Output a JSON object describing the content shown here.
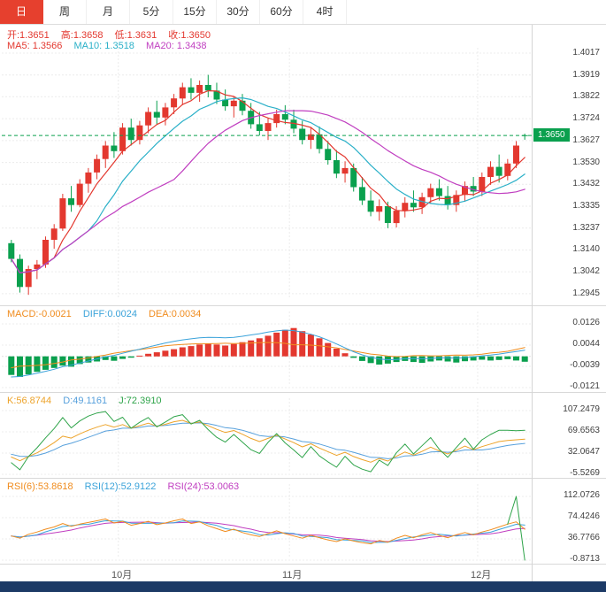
{
  "tabs": [
    {
      "label": "日",
      "active": true
    },
    {
      "label": "周",
      "active": false
    },
    {
      "label": "月",
      "active": false
    },
    {
      "label": "5分",
      "active": false
    },
    {
      "label": "15分",
      "active": false
    },
    {
      "label": "30分",
      "active": false
    },
    {
      "label": "60分",
      "active": false
    },
    {
      "label": "4时",
      "active": false
    }
  ],
  "main": {
    "ohlc": [
      "开:1.3651",
      "高:1.3658",
      "低:1.3631",
      "收:1.3650"
    ],
    "ma": [
      "MA5: 1.3566",
      "MA10: 1.3518",
      "MA20: 1.3438"
    ],
    "y_axis": [
      "1.4017",
      "1.3919",
      "1.3822",
      "1.3724",
      "1.3627",
      "1.3530",
      "1.3432",
      "1.3335",
      "1.3237",
      "1.3140",
      "1.3042",
      "1.2945"
    ]
  },
  "price_badge": "1.3650",
  "macd": {
    "readout": [
      "MACD:-0.0021",
      "DIFF:0.0024",
      "DEA:0.0034"
    ],
    "y_axis": [
      "0.0126",
      "0.0044",
      "-0.0039",
      "-0.0121"
    ]
  },
  "kdj": {
    "readout": [
      "K:56.8744",
      "D:49.1161",
      "J:72.3910"
    ],
    "y_axis": [
      "107.2479",
      "69.6563",
      "32.0647",
      "-5.5269"
    ]
  },
  "rsi": {
    "readout": [
      "RSI(6):53.8618",
      "RSI(12):52.9122",
      "RSI(24):53.0063"
    ],
    "y_axis": [
      "112.0726",
      "74.4246",
      "36.7766",
      "-0.8713"
    ]
  },
  "months": [
    "10月",
    "11月",
    "12月"
  ],
  "chart_data": {
    "type": "candlestick",
    "timeframe": "日",
    "last_price": 1.365,
    "main_ylim": [
      1.2945,
      1.4017
    ],
    "macd_ylim": [
      -0.0121,
      0.0126
    ],
    "kdj_ylim": [
      -5.5269,
      107.2479
    ],
    "rsi_ylim": [
      -0.8713,
      112.0726
    ],
    "month_index": [
      13,
      33,
      55
    ],
    "ma_periods": [
      5,
      10,
      20
    ],
    "ma_values": [
      1.3566,
      1.3518,
      1.3438
    ],
    "colors": {
      "up": "#e3382f",
      "down": "#0aa04e",
      "ma5": "#e3382f",
      "ma10": "#2ab0c8",
      "ma20": "#c03ec0",
      "diff": "#3ba3da",
      "dea": "#f08c1e",
      "k": "#eda32a",
      "d": "#57a0dc",
      "j": "#2fa44a",
      "rsi6": "#f08c1e",
      "rsi12": "#3ba3da",
      "rsi24": "#c03ec0",
      "price_badge": "#0aa04e",
      "active_tab": "#e6402e",
      "bottom_bar": "#1c3a66"
    },
    "candles": [
      [
        1.317,
        1.3185,
        1.3085,
        1.31
      ],
      [
        1.31,
        1.312,
        1.295,
        1.2975
      ],
      [
        1.2975,
        1.307,
        1.294,
        1.3055
      ],
      [
        1.3055,
        1.3095,
        1.301,
        1.3075
      ],
      [
        1.3075,
        1.32,
        1.306,
        1.3185
      ],
      [
        1.3185,
        1.3255,
        1.3145,
        1.3235
      ],
      [
        1.3235,
        1.339,
        1.3225,
        1.337
      ],
      [
        1.337,
        1.3425,
        1.331,
        1.334
      ],
      [
        1.334,
        1.3455,
        1.333,
        1.3435
      ],
      [
        1.3435,
        1.3505,
        1.3395,
        1.3485
      ],
      [
        1.3485,
        1.3565,
        1.3455,
        1.3545
      ],
      [
        1.3545,
        1.3625,
        1.3505,
        1.3605
      ],
      [
        1.3605,
        1.3665,
        1.355,
        1.358
      ],
      [
        1.358,
        1.3705,
        1.3565,
        1.3685
      ],
      [
        1.3685,
        1.3725,
        1.3605,
        1.363
      ],
      [
        1.363,
        1.3715,
        1.361,
        1.3695
      ],
      [
        1.3695,
        1.3775,
        1.366,
        1.3755
      ],
      [
        1.3755,
        1.3805,
        1.37,
        1.373
      ],
      [
        1.373,
        1.3795,
        1.3695,
        1.3775
      ],
      [
        1.3775,
        1.3835,
        1.3745,
        1.3815
      ],
      [
        1.3815,
        1.3885,
        1.3785,
        1.3865
      ],
      [
        1.3865,
        1.3905,
        1.381,
        1.384
      ],
      [
        1.384,
        1.3895,
        1.38,
        1.3875
      ],
      [
        1.3875,
        1.392,
        1.382,
        1.385
      ],
      [
        1.385,
        1.3885,
        1.379,
        1.381
      ],
      [
        1.381,
        1.3855,
        1.376,
        1.378
      ],
      [
        1.378,
        1.3825,
        1.373,
        1.3805
      ],
      [
        1.3805,
        1.3835,
        1.374,
        1.376
      ],
      [
        1.376,
        1.3795,
        1.368,
        1.37
      ],
      [
        1.37,
        1.3755,
        1.365,
        1.367
      ],
      [
        1.367,
        1.3725,
        1.363,
        1.3705
      ],
      [
        1.3705,
        1.3765,
        1.3685,
        1.3745
      ],
      [
        1.3745,
        1.3785,
        1.37,
        1.372
      ],
      [
        1.372,
        1.3765,
        1.366,
        1.368
      ],
      [
        1.368,
        1.3715,
        1.361,
        1.363
      ],
      [
        1.363,
        1.3685,
        1.359,
        1.3655
      ],
      [
        1.3655,
        1.369,
        1.357,
        1.359
      ],
      [
        1.359,
        1.3625,
        1.352,
        1.354
      ],
      [
        1.354,
        1.3585,
        1.346,
        1.348
      ],
      [
        1.348,
        1.3535,
        1.344,
        1.3505
      ],
      [
        1.3505,
        1.3525,
        1.34,
        1.342
      ],
      [
        1.342,
        1.3465,
        1.334,
        1.336
      ],
      [
        1.336,
        1.3405,
        1.329,
        1.331
      ],
      [
        1.331,
        1.3365,
        1.327,
        1.3335
      ],
      [
        1.3335,
        1.3355,
        1.3237,
        1.326
      ],
      [
        1.326,
        1.3335,
        1.324,
        1.3315
      ],
      [
        1.3315,
        1.3375,
        1.3285,
        1.335
      ],
      [
        1.335,
        1.3405,
        1.331,
        1.333
      ],
      [
        1.333,
        1.3395,
        1.33,
        1.3375
      ],
      [
        1.3375,
        1.3435,
        1.3345,
        1.3415
      ],
      [
        1.3415,
        1.3455,
        1.336,
        1.338
      ],
      [
        1.338,
        1.3425,
        1.332,
        1.334
      ],
      [
        1.334,
        1.3405,
        1.331,
        1.3385
      ],
      [
        1.3385,
        1.3445,
        1.3355,
        1.3425
      ],
      [
        1.3425,
        1.3465,
        1.338,
        1.34
      ],
      [
        1.34,
        1.3485,
        1.338,
        1.3465
      ],
      [
        1.3465,
        1.3535,
        1.343,
        1.351
      ],
      [
        1.351,
        1.3565,
        1.344,
        1.347
      ],
      [
        1.347,
        1.3545,
        1.345,
        1.3525
      ],
      [
        1.3525,
        1.3625,
        1.3505,
        1.3605
      ],
      [
        1.3651,
        1.3658,
        1.3631,
        1.365
      ]
    ],
    "macd": {
      "hist": [
        -0.0072,
        -0.008,
        -0.007,
        -0.006,
        -0.0052,
        -0.0045,
        -0.0036,
        -0.004,
        -0.003,
        -0.0024,
        -0.002,
        -0.0014,
        -0.0017,
        -0.001,
        -0.0005,
        0.0003,
        0.001,
        0.0016,
        0.0022,
        0.0028,
        0.0035,
        0.004,
        0.0046,
        0.005,
        0.0046,
        0.0042,
        0.0048,
        0.0055,
        0.0062,
        0.007,
        0.008,
        0.0092,
        0.0103,
        0.011,
        0.0098,
        0.0085,
        0.007,
        0.0052,
        0.003,
        0.0012,
        -0.0006,
        -0.0018,
        -0.0026,
        -0.0032,
        -0.0028,
        -0.0022,
        -0.0018,
        -0.0022,
        -0.0025,
        -0.002,
        -0.0016,
        -0.002,
        -0.0024,
        -0.0019,
        -0.0016,
        -0.0013,
        -0.0016,
        -0.0014,
        -0.0011,
        -0.0016,
        -0.0021
      ],
      "diff": [
        -0.008,
        -0.0078,
        -0.0072,
        -0.0065,
        -0.0058,
        -0.005,
        -0.004,
        -0.0034,
        -0.0026,
        -0.0018,
        -0.001,
        -0.0002,
        0.0004,
        0.0012,
        0.002,
        0.0028,
        0.0036,
        0.0044,
        0.0052,
        0.0058,
        0.0064,
        0.0068,
        0.0072,
        0.0074,
        0.0073,
        0.0072,
        0.0074,
        0.0078,
        0.0083,
        0.0088,
        0.0094,
        0.0099,
        0.0102,
        0.01,
        0.0094,
        0.0086,
        0.0076,
        0.0063,
        0.0048,
        0.0033,
        0.0018,
        0.0006,
        -0.0004,
        -0.001,
        -0.0013,
        -0.0012,
        -0.0009,
        -0.0008,
        -0.0009,
        -0.0008,
        -0.0006,
        -0.0006,
        -0.0007,
        -0.0005,
        -0.0002,
        0.0002,
        0.0005,
        0.0009,
        0.0014,
        0.0019,
        0.0024
      ]
    },
    "kdj": {
      "k": [
        25.0,
        18.5,
        26.0,
        32.5,
        41.0,
        50.5,
        62.0,
        58.5,
        66.0,
        72.5,
        78.0,
        82.5,
        78.0,
        82.5,
        76.0,
        80.5,
        85.0,
        79.5,
        83.0,
        87.5,
        90.0,
        84.5,
        87.0,
        80.5,
        74.0,
        68.5,
        72.0,
        65.5,
        58.0,
        52.5,
        58.0,
        63.5,
        57.0,
        50.5,
        43.0,
        48.5,
        41.0,
        34.5,
        28.0,
        33.5,
        26.0,
        20.5,
        16.0,
        22.5,
        18.0,
        26.5,
        34.0,
        28.5,
        35.0,
        42.5,
        36.0,
        30.5,
        37.0,
        44.5,
        38.0,
        43.5,
        48.0,
        52.5,
        54.5,
        55.5,
        56.8744
      ],
      "d": [
        30.0,
        26.5,
        26.0,
        28.0,
        32.0,
        38.0,
        45.5,
        49.5,
        54.5,
        60.0,
        65.5,
        71.0,
        73.0,
        76.0,
        76.0,
        77.5,
        80.0,
        80.0,
        81.0,
        83.0,
        85.0,
        85.0,
        85.5,
        84.0,
        81.0,
        77.0,
        75.5,
        72.5,
        68.0,
        63.0,
        61.5,
        62.0,
        60.5,
        57.0,
        52.5,
        51.0,
        48.0,
        43.5,
        38.5,
        37.0,
        33.5,
        29.0,
        24.5,
        24.0,
        22.0,
        23.5,
        27.0,
        27.5,
        30.0,
        34.0,
        34.5,
        33.5,
        34.5,
        37.5,
        37.5,
        37.5,
        39.5,
        42.5,
        45.5,
        47.5,
        49.1161
      ]
    },
    "rsi": {
      "rsi6": [
        42,
        38,
        45,
        49,
        54,
        58,
        64,
        59,
        63,
        66,
        69,
        72,
        65,
        68,
        61,
        64,
        68,
        62,
        65,
        69,
        72,
        64,
        67,
        60,
        55,
        50,
        54,
        48,
        44,
        41,
        46,
        51,
        46,
        42,
        38,
        43,
        39,
        35,
        32,
        37,
        33,
        30,
        28,
        34,
        31,
        38,
        43,
        39,
        44,
        48,
        43,
        39,
        44,
        48,
        44,
        49,
        53,
        58,
        63,
        67,
        53.8618
      ],
      "spike": {
        "x": [
          58,
          59,
          60
        ],
        "values": [
          63,
          112.0726,
          -0.8713
        ]
      }
    }
  }
}
